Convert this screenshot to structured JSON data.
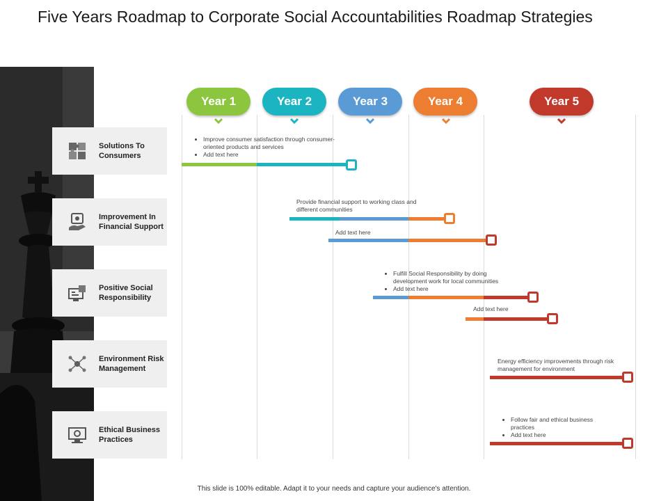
{
  "title": "Five Years Roadmap to Corporate Social Accountabilities Roadmap Strategies",
  "years": [
    {
      "label": "Year 1",
      "color": "#8cc63f"
    },
    {
      "label": "Year 2",
      "color": "#1bb5c1"
    },
    {
      "label": "Year 3",
      "color": "#5b9bd5"
    },
    {
      "label": "Year 4",
      "color": "#ed7d31"
    },
    {
      "label": "Year 5",
      "color": "#c0392b"
    }
  ],
  "categories": [
    {
      "label": "Solutions To Consumers",
      "icon": "puzzle-icon"
    },
    {
      "label": "Improvement In Financial Support",
      "icon": "financial-hand-icon"
    },
    {
      "label": "Positive Social Responsibility",
      "icon": "social-screen-icon"
    },
    {
      "label": "Environment Risk Management",
      "icon": "risk-network-icon"
    },
    {
      "label": "Ethical Business Practices",
      "icon": "ethics-monitor-icon"
    }
  ],
  "notes": {
    "n1": [
      "Improve consumer satisfaction through consumer-oriented products and services",
      "Add text here"
    ],
    "n2": "Provide financial support to working class and different communities",
    "n3": "Add text here",
    "n4": [
      "Fulfill Social Responsibility by doing development work for local communities",
      "Add text here"
    ],
    "n5": "Add text here",
    "n6": "Energy efficiency improvements through risk management for environment",
    "n7": [
      "Follow fair and ethical business practices",
      "Add text here"
    ]
  },
  "footer": "This slide is 100% editable. Adapt it to your needs and capture your audience's attention."
}
